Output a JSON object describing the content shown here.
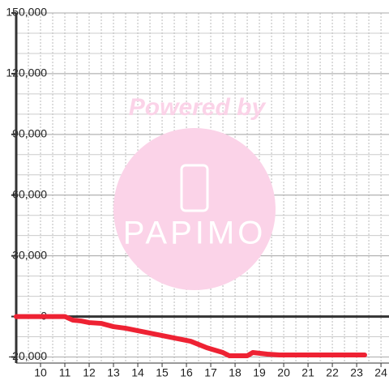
{
  "chart_data": {
    "type": "line",
    "watermark": {
      "title": "Powered by",
      "brand": "PAPIMO"
    },
    "x": [
      9,
      11,
      11.33,
      11.67,
      12,
      12.5,
      13,
      13.5,
      14,
      14.5,
      15,
      15.5,
      16.17,
      16.83,
      17.5,
      17.77,
      18.5,
      18.73,
      19.33,
      19.83,
      23.33
    ],
    "series": [
      {
        "color": "#ee2233",
        "values": [
          0,
          0,
          -1800,
          -2200,
          -3000,
          -3400,
          -5000,
          -5800,
          -7000,
          -8200,
          -9400,
          -10600,
          -12200,
          -15400,
          -17800,
          -19400,
          -19400,
          -17800,
          -18600,
          -19000,
          -19000
        ]
      }
    ],
    "xlim": [
      9,
      24.33
    ],
    "ylim": [
      -23000,
      150000
    ],
    "xticks": [
      10,
      11,
      12,
      13,
      14,
      15,
      16,
      17,
      18,
      19,
      20,
      21,
      22,
      23,
      24
    ],
    "yticks": [
      {
        "value": -20000,
        "label": "-20,000"
      },
      0,
      {
        "value": 30000,
        "label": "30,000"
      },
      {
        "value": 60000,
        "label": "60,000"
      },
      {
        "value": 90000,
        "label": "90,000"
      },
      {
        "value": 120000,
        "label": "120,000"
      },
      {
        "value": 150000,
        "label": "150,000"
      }
    ],
    "grid": true,
    "xgrid_step": 0.5,
    "ygrid_step": 10000
  }
}
